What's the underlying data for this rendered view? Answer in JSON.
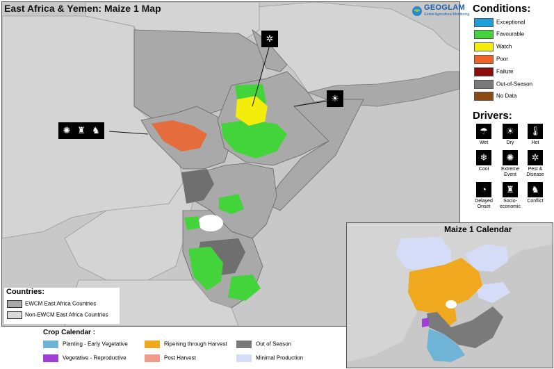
{
  "map": {
    "title": "East Africa & Yemen: Maize 1 Map",
    "logo_text": "GEOGLAM",
    "logo_subtext": "Global Agricultural Monitoring",
    "callouts": [
      {
        "name": "sudan-callout",
        "icons": [
          "extreme-event-icon",
          "socio-economic-icon",
          "conflict-icon"
        ]
      },
      {
        "name": "ethiopia-north-callout",
        "icons": [
          "pest-disease-icon"
        ]
      },
      {
        "name": "ethiopia-east-callout",
        "icons": [
          "dry-icon"
        ]
      }
    ]
  },
  "conditions": {
    "title": "Conditions:",
    "items": [
      {
        "label": "Exceptional",
        "color": "#1e9fd8"
      },
      {
        "label": "Favourable",
        "color": "#43d33b"
      },
      {
        "label": "Watch",
        "color": "#f4ec0a"
      },
      {
        "label": "Poor",
        "color": "#f0622a"
      },
      {
        "label": "Failure",
        "color": "#8b0d0d"
      },
      {
        "label": "Out-of-Season",
        "color": "#7a7a7a"
      },
      {
        "label": "No Data",
        "color": "#8b4a12"
      }
    ]
  },
  "drivers": {
    "title": "Drivers:",
    "items": [
      {
        "label": "Wet",
        "icon": "wet-icon"
      },
      {
        "label": "Dry",
        "icon": "dry-icon"
      },
      {
        "label": "Hot",
        "icon": "hot-icon"
      },
      {
        "label": "Cool",
        "icon": "cool-icon"
      },
      {
        "label": "Extreme Event",
        "icon": "extreme-event-icon"
      },
      {
        "label": "Pest & Disease",
        "icon": "pest-disease-icon"
      },
      {
        "label": "Delayed Onset",
        "icon": "delayed-onset-icon"
      },
      {
        "label": "Socio-economic",
        "icon": "socio-economic-icon"
      },
      {
        "label": "Conflict",
        "icon": "conflict-icon"
      }
    ]
  },
  "countries_legend": {
    "title": "Countries:",
    "items": [
      {
        "label": "EWCM East Africa Countries",
        "color": "#a9a9a9"
      },
      {
        "label": "Non-EWCM East Africa Countries",
        "color": "#d9d9d9"
      }
    ]
  },
  "crop_calendar_legend": {
    "title": "Crop Calendar :",
    "items": [
      {
        "label": "Planting - Early Vegetative",
        "color": "#6fb4d6"
      },
      {
        "label": "Ripening through Harvest",
        "color": "#f0a81f"
      },
      {
        "label": "Out of Season",
        "color": "#7a7a7a"
      },
      {
        "label": "Vegetative - Reproductive",
        "color": "#a23ed8"
      },
      {
        "label": "Post Harvest",
        "color": "#f29a8a"
      },
      {
        "label": "Minimal Production",
        "color": "#d5dcf7"
      }
    ]
  },
  "calendar_inset": {
    "title": "Maize 1 Calendar"
  }
}
